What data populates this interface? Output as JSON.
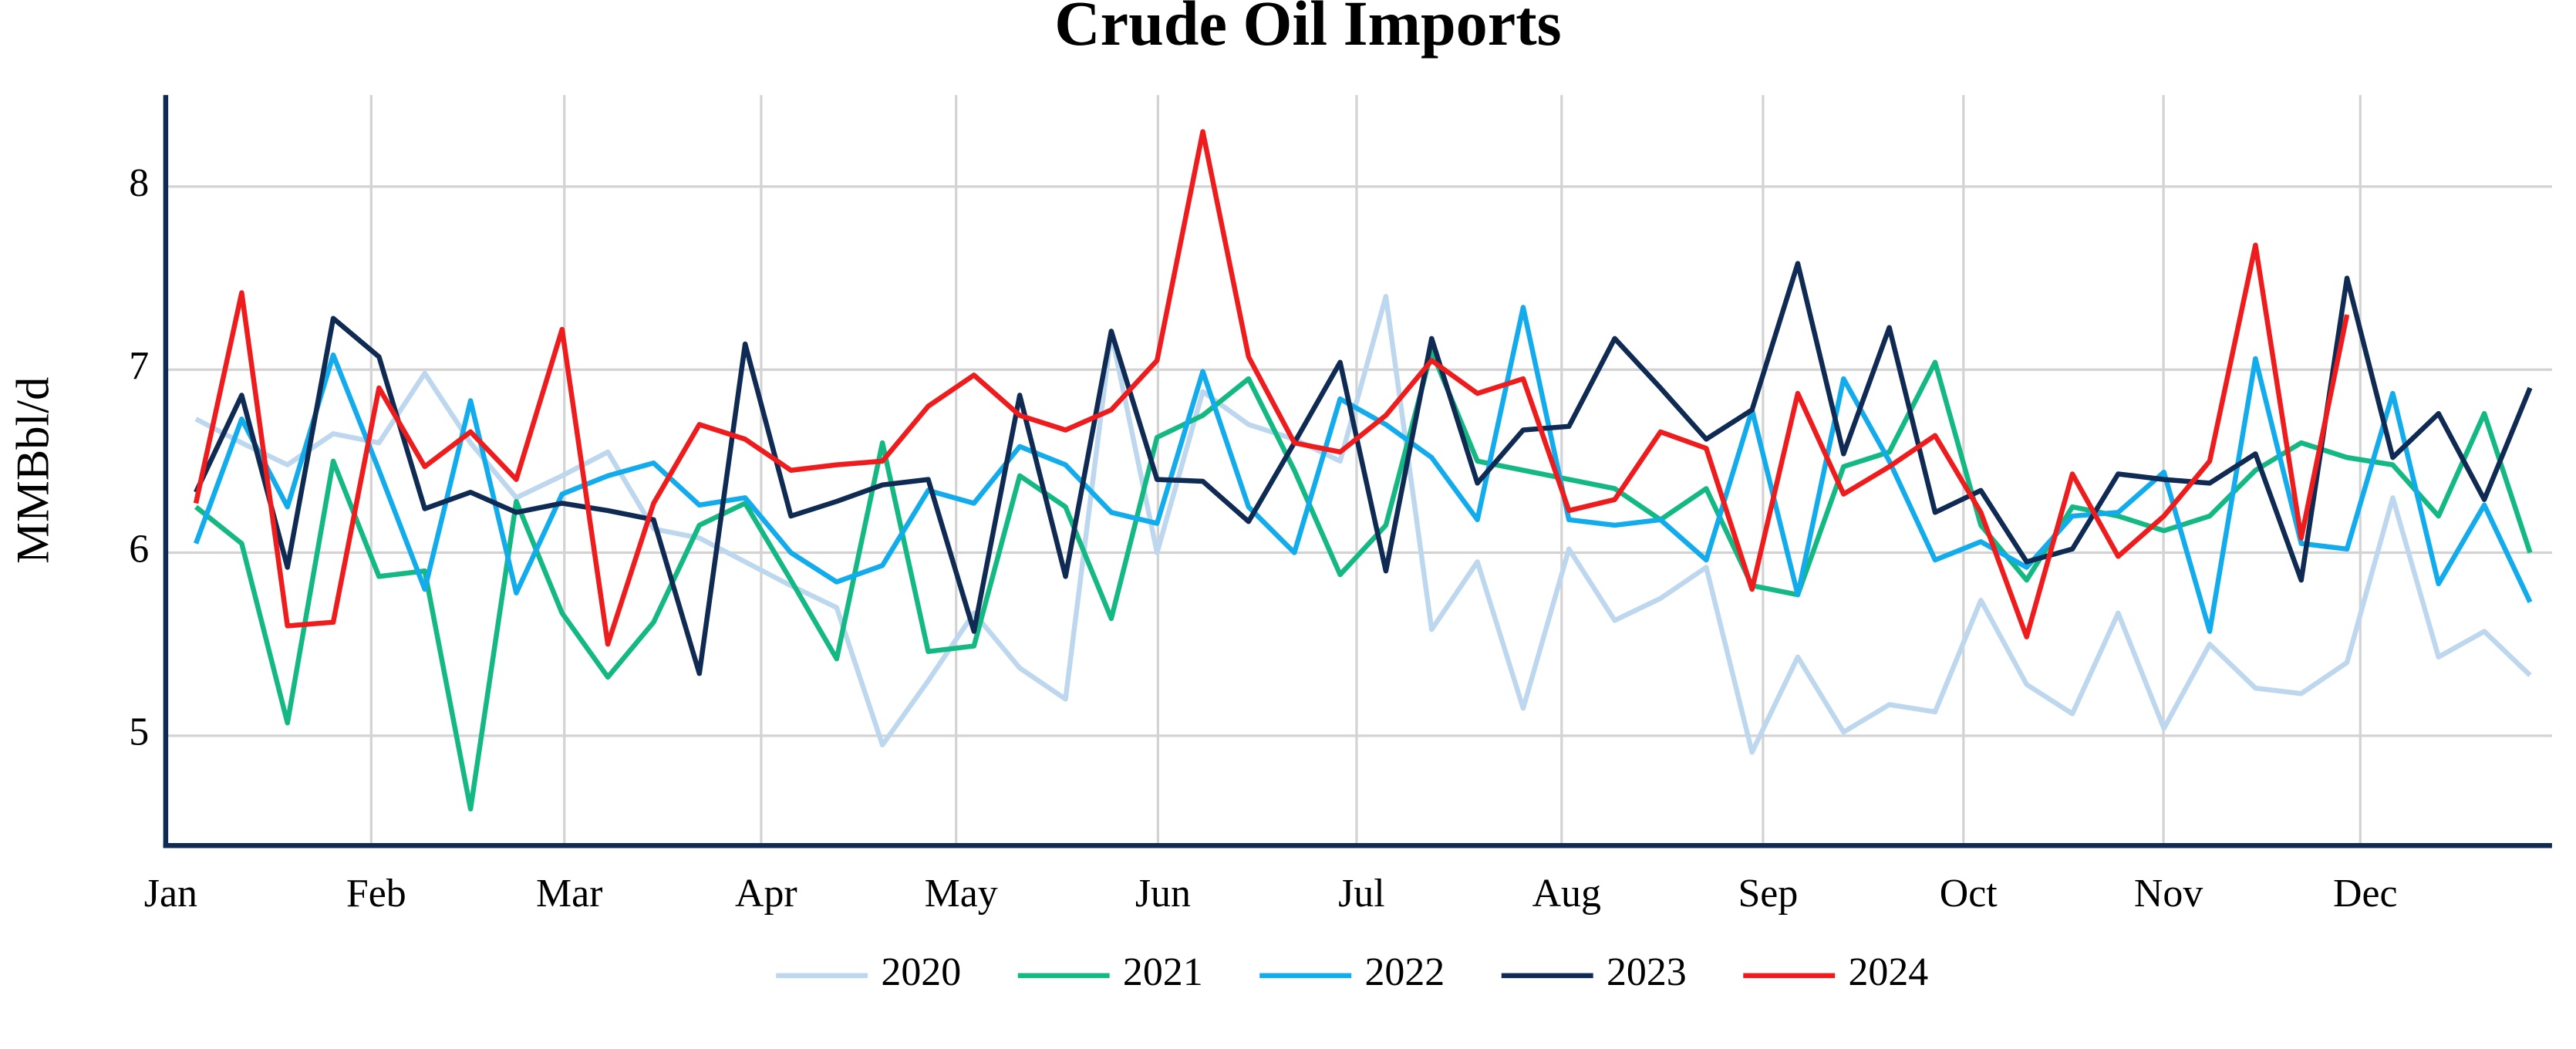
{
  "chart_data": {
    "type": "line",
    "title": "Crude Oil Imports",
    "y_label": "MMBbl/d",
    "x": [
      0,
      1,
      2,
      3,
      4,
      5,
      6,
      7,
      8,
      9,
      10,
      11,
      12,
      13,
      14,
      15,
      16,
      17,
      18,
      19,
      20,
      21,
      22,
      23,
      24,
      25,
      26,
      27,
      28,
      29,
      30,
      31,
      32,
      33,
      34,
      35,
      36,
      37,
      38,
      39,
      40,
      41,
      42,
      43,
      44,
      45,
      46,
      47,
      48,
      49,
      50,
      51
    ],
    "xlim": [
      -0.66,
      51.48
    ],
    "xticks": [
      {
        "value": -0.66,
        "label": "Jan"
      },
      {
        "value": 3.83,
        "label": "Feb"
      },
      {
        "value": 8.05,
        "label": "Mar"
      },
      {
        "value": 12.35,
        "label": "Apr"
      },
      {
        "value": 16.61,
        "label": "May"
      },
      {
        "value": 21.02,
        "label": "Jun"
      },
      {
        "value": 25.36,
        "label": "Jul"
      },
      {
        "value": 29.84,
        "label": "Aug"
      },
      {
        "value": 34.24,
        "label": "Sep"
      },
      {
        "value": 38.62,
        "label": "Oct"
      },
      {
        "value": 42.99,
        "label": "Nov"
      },
      {
        "value": 47.29,
        "label": "Dec"
      }
    ],
    "ylim": [
      4.4,
      8.5
    ],
    "yticks": [
      5,
      6,
      7,
      8
    ],
    "grid": true,
    "series": [
      {
        "name": "2020",
        "color": "#bdd7ee",
        "values": [
          6.73,
          6.6,
          6.48,
          6.65,
          6.6,
          6.98,
          6.6,
          6.3,
          6.42,
          6.55,
          6.13,
          6.08,
          5.95,
          5.82,
          5.7,
          4.95,
          5.3,
          5.67,
          5.37,
          5.2,
          7.2,
          6.0,
          6.88,
          6.7,
          6.62,
          6.5,
          7.4,
          5.58,
          5.95,
          5.15,
          6.02,
          5.63,
          5.75,
          5.92,
          4.91,
          5.43,
          5.02,
          5.17,
          5.13,
          5.74,
          5.28,
          5.12,
          5.67,
          5.04,
          5.5,
          5.26,
          5.23,
          5.4,
          6.3,
          5.43,
          5.57,
          5.33
        ]
      },
      {
        "name": "2021",
        "color": "#14b882",
        "values": [
          6.25,
          6.05,
          5.07,
          6.5,
          5.87,
          5.9,
          4.6,
          6.28,
          5.67,
          5.32,
          5.62,
          6.15,
          6.27,
          5.85,
          5.42,
          6.6,
          5.46,
          5.49,
          6.42,
          6.25,
          5.64,
          6.63,
          6.75,
          6.95,
          6.45,
          5.88,
          6.15,
          7.1,
          6.5,
          6.45,
          6.4,
          6.35,
          6.18,
          6.35,
          5.82,
          5.77,
          6.47,
          6.55,
          7.04,
          6.15,
          5.85,
          6.25,
          6.2,
          6.12,
          6.2,
          6.45,
          6.6,
          6.52,
          6.48,
          6.2,
          6.76,
          6.0
        ]
      },
      {
        "name": "2022",
        "color": "#12acec",
        "values": [
          6.05,
          6.73,
          6.25,
          7.08,
          6.45,
          5.8,
          6.83,
          5.78,
          6.32,
          6.42,
          6.49,
          6.26,
          6.3,
          6.0,
          5.84,
          5.93,
          6.34,
          6.27,
          6.58,
          6.48,
          6.22,
          6.16,
          6.99,
          6.25,
          6.0,
          6.84,
          6.7,
          6.52,
          6.18,
          7.34,
          6.18,
          6.15,
          6.18,
          5.96,
          6.78,
          5.77,
          6.95,
          6.5,
          5.96,
          6.06,
          5.92,
          6.2,
          6.22,
          6.44,
          5.57,
          7.06,
          6.05,
          6.02,
          6.87,
          5.83,
          6.26,
          5.73
        ]
      },
      {
        "name": "2023",
        "color": "#0f2b54",
        "values": [
          6.33,
          6.86,
          5.92,
          7.28,
          7.07,
          6.24,
          6.33,
          6.22,
          6.27,
          6.23,
          6.18,
          5.34,
          7.14,
          6.2,
          6.28,
          6.37,
          6.4,
          5.57,
          6.86,
          5.87,
          7.21,
          6.4,
          6.39,
          6.17,
          6.6,
          7.04,
          5.9,
          7.17,
          6.38,
          6.67,
          6.69,
          7.17,
          6.9,
          6.62,
          6.78,
          7.58,
          6.54,
          7.23,
          6.22,
          6.34,
          5.95,
          6.02,
          6.43,
          6.4,
          6.38,
          6.54,
          5.85,
          7.5,
          6.52,
          6.76,
          6.29,
          6.9
        ]
      },
      {
        "name": "2024",
        "color": "#ee1c1c",
        "values": [
          6.27,
          7.42,
          5.6,
          5.62,
          6.9,
          6.47,
          6.66,
          6.4,
          7.22,
          5.5,
          6.27,
          6.7,
          6.62,
          6.45,
          6.48,
          6.5,
          6.8,
          6.97,
          6.75,
          6.67,
          6.78,
          7.05,
          8.3,
          7.07,
          6.6,
          6.55,
          6.75,
          7.05,
          6.87,
          6.95,
          6.23,
          6.29,
          6.66,
          6.57,
          5.8,
          6.87,
          6.32,
          6.47,
          6.64,
          6.22,
          5.54,
          6.43,
          5.98,
          6.2,
          6.5,
          7.68,
          6.08,
          7.3,
          null,
          null,
          null,
          null
        ]
      }
    ]
  }
}
